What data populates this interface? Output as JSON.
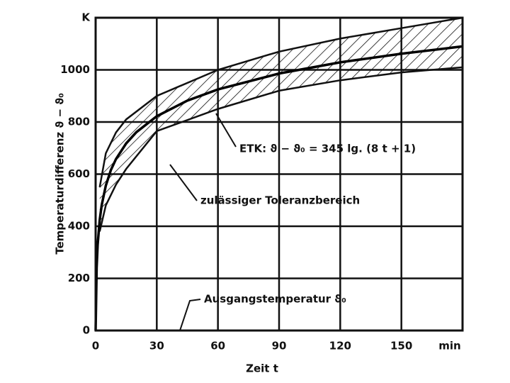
{
  "chart_data": {
    "type": "line",
    "y_label": "Temperaturdifferenz ϑ − ϑ₀",
    "x_label": "Zeit t",
    "x": [
      0,
      0.5,
      1,
      2,
      3,
      5,
      7.5,
      10,
      15,
      20,
      30,
      45,
      60,
      90,
      120,
      150,
      180
    ],
    "series": [
      {
        "color": "#000000",
        "values": [
          0,
          241,
          329,
          424,
          482,
          556,
          616,
          658,
          718,
          761,
          822,
          882,
          925,
          986,
          1029,
          1062,
          1090
        ]
      }
    ],
    "band": {
      "x": [
        2,
        5,
        10,
        15,
        30,
        60,
        90,
        120,
        150,
        180
      ],
      "upper": [
        550,
        680,
        760,
        810,
        900,
        1000,
        1070,
        1120,
        1160,
        1200
      ],
      "lower": [
        380,
        480,
        560,
        620,
        765,
        850,
        920,
        960,
        990,
        1010
      ],
      "hatch": true
    },
    "annotations": [
      "ETK: ϑ − ϑ₀ = 345 lg. (8 t + 1)",
      "zulässiger Toleranzbereich",
      "Ausgangstemperatur ϑ₀"
    ],
    "xlim": [
      0,
      180
    ],
    "ylim": [
      0,
      1200
    ],
    "xticks": [
      0,
      30,
      60,
      90,
      120,
      150,
      {
        "value": 180,
        "label": "min"
      }
    ],
    "yticks": [
      0,
      200,
      400,
      600,
      800,
      1000,
      {
        "value": 1200,
        "label": "K"
      }
    ],
    "grid": true
  }
}
